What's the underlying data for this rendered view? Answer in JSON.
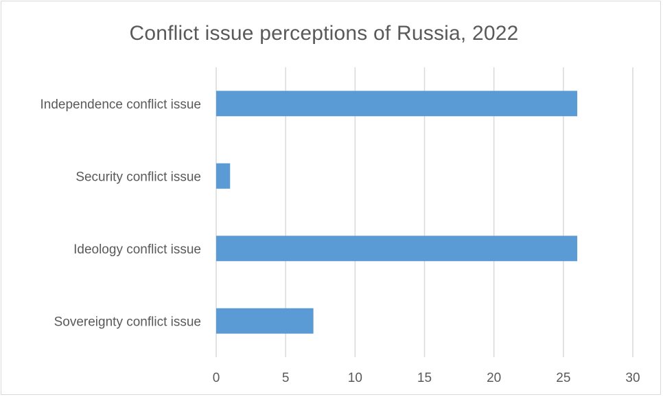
{
  "chart_data": {
    "type": "bar",
    "orientation": "horizontal",
    "title": "Conflict issue perceptions of Russia, 2022",
    "categories": [
      "Independence conflict issue",
      "Security conflict issue",
      "Ideology conflict issue",
      "Sovereignty conflict issue"
    ],
    "values": [
      26,
      1,
      26,
      7
    ],
    "xlim": [
      0,
      30
    ],
    "xticks": [
      0,
      5,
      10,
      15,
      20,
      25,
      30
    ],
    "xlabel": "",
    "ylabel": "",
    "grid": "vertical",
    "bar_color": "#5b9bd5",
    "grid_color": "#d9d9d9",
    "legend": "none"
  }
}
